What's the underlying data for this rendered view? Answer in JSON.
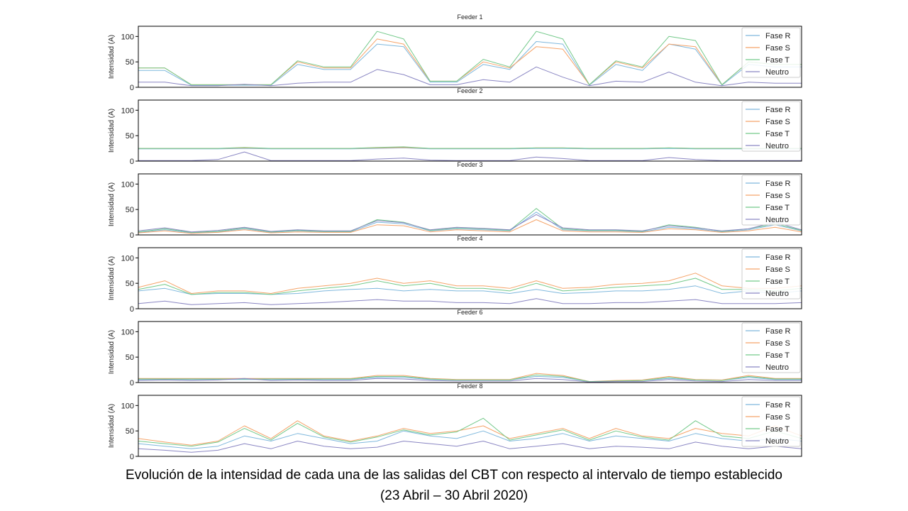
{
  "caption": {
    "line1": "Evolución de la intensidad de cada una de las salidas del CBT con respecto al intervalo de tiempo establecido",
    "line2": "(23 Abril – 30 Abril 2020)"
  },
  "colors": {
    "Fase R": "#7fb8dd",
    "Fase S": "#f5a46a",
    "Fase T": "#73c98a",
    "Neutro": "#8a86c3"
  },
  "chart_data": [
    {
      "type": "line",
      "title": "Feeder 1",
      "ylabel": "Intensidad (A)",
      "ylim": [
        0,
        120
      ],
      "yticks": [
        0,
        50,
        100
      ],
      "x": [
        0,
        4,
        8,
        12,
        16,
        20,
        24,
        28,
        32,
        36,
        40,
        44,
        48,
        52,
        56,
        60,
        64,
        68,
        72,
        76,
        80,
        84,
        88,
        92,
        96,
        100
      ],
      "legend": "upper right",
      "series": [
        {
          "name": "Fase R",
          "values": [
            33,
            33,
            4,
            4,
            4,
            4,
            45,
            35,
            35,
            85,
            80,
            10,
            10,
            45,
            35,
            90,
            85,
            4,
            45,
            33,
            85,
            75,
            4,
            45,
            40,
            40
          ]
        },
        {
          "name": "Fase S",
          "values": [
            38,
            38,
            5,
            5,
            5,
            5,
            50,
            38,
            38,
            95,
            85,
            12,
            12,
            50,
            38,
            80,
            75,
            5,
            50,
            38,
            85,
            80,
            5,
            50,
            45,
            45
          ]
        },
        {
          "name": "Fase T",
          "values": [
            38,
            38,
            5,
            5,
            5,
            5,
            52,
            40,
            40,
            110,
            95,
            12,
            12,
            55,
            40,
            110,
            95,
            5,
            52,
            40,
            100,
            92,
            5,
            50,
            45,
            45
          ]
        },
        {
          "name": "Neutro",
          "values": [
            10,
            10,
            3,
            3,
            6,
            3,
            8,
            10,
            10,
            35,
            25,
            5,
            5,
            15,
            10,
            40,
            20,
            3,
            12,
            10,
            30,
            10,
            3,
            10,
            8,
            8
          ]
        }
      ]
    },
    {
      "type": "line",
      "title": "Feeder 2",
      "ylabel": "Intensidad (A)",
      "ylim": [
        0,
        120
      ],
      "yticks": [
        0,
        50,
        100
      ],
      "x": [
        0,
        4,
        8,
        12,
        16,
        20,
        24,
        28,
        32,
        36,
        40,
        44,
        48,
        52,
        56,
        60,
        64,
        68,
        72,
        76,
        80,
        84,
        88,
        92,
        96,
        100
      ],
      "legend": "upper right",
      "series": [
        {
          "name": "Fase R",
          "values": [
            24,
            24,
            24,
            24,
            25,
            24,
            24,
            24,
            24,
            25,
            26,
            24,
            24,
            24,
            24,
            25,
            25,
            24,
            24,
            24,
            25,
            24,
            24,
            24,
            24,
            24
          ]
        },
        {
          "name": "Fase S",
          "values": [
            25,
            25,
            25,
            25,
            26,
            25,
            25,
            25,
            25,
            26,
            27,
            25,
            25,
            25,
            25,
            26,
            26,
            25,
            25,
            25,
            26,
            25,
            25,
            25,
            25,
            25
          ]
        },
        {
          "name": "Fase T",
          "values": [
            25,
            25,
            25,
            25,
            27,
            25,
            25,
            25,
            25,
            27,
            28,
            25,
            25,
            25,
            25,
            26,
            26,
            25,
            25,
            25,
            26,
            25,
            25,
            25,
            25,
            25
          ]
        },
        {
          "name": "Neutro",
          "values": [
            1,
            1,
            1,
            3,
            18,
            1,
            1,
            1,
            1,
            4,
            6,
            2,
            1,
            1,
            1,
            8,
            5,
            1,
            1,
            1,
            7,
            3,
            1,
            1,
            1,
            1
          ]
        }
      ]
    },
    {
      "type": "line",
      "title": "Feeder 3",
      "ylabel": "Intensidad (A)",
      "ylim": [
        0,
        120
      ],
      "yticks": [
        0,
        50,
        100
      ],
      "x": [
        0,
        4,
        8,
        12,
        16,
        20,
        24,
        28,
        32,
        36,
        40,
        44,
        48,
        52,
        56,
        60,
        64,
        68,
        72,
        76,
        80,
        84,
        88,
        92,
        96,
        100
      ],
      "legend": "upper right",
      "series": [
        {
          "name": "Fase R",
          "values": [
            5,
            10,
            4,
            6,
            12,
            5,
            8,
            6,
            6,
            25,
            22,
            8,
            12,
            10,
            8,
            45,
            10,
            8,
            8,
            6,
            15,
            12,
            6,
            10,
            20,
            8
          ]
        },
        {
          "name": "Fase S",
          "values": [
            4,
            8,
            3,
            5,
            10,
            4,
            6,
            5,
            5,
            20,
            18,
            6,
            10,
            8,
            6,
            30,
            8,
            6,
            6,
            5,
            12,
            10,
            5,
            8,
            15,
            6
          ]
        },
        {
          "name": "Fase T",
          "values": [
            6,
            12,
            5,
            7,
            14,
            6,
            9,
            7,
            7,
            30,
            25,
            9,
            14,
            12,
            9,
            52,
            12,
            9,
            9,
            7,
            20,
            15,
            7,
            12,
            22,
            9
          ]
        },
        {
          "name": "Neutro",
          "values": [
            8,
            14,
            6,
            9,
            15,
            7,
            10,
            8,
            8,
            28,
            24,
            10,
            15,
            13,
            10,
            40,
            14,
            10,
            10,
            8,
            18,
            14,
            8,
            12,
            25,
            10
          ]
        }
      ]
    },
    {
      "type": "line",
      "title": "Feeder 4",
      "ylabel": "Intensidad (A)",
      "ylim": [
        0,
        120
      ],
      "yticks": [
        0,
        50,
        100
      ],
      "x": [
        0,
        4,
        8,
        12,
        16,
        20,
        24,
        28,
        32,
        36,
        40,
        44,
        48,
        52,
        56,
        60,
        64,
        68,
        72,
        76,
        80,
        84,
        88,
        92,
        96,
        100
      ],
      "legend": "upper right",
      "series": [
        {
          "name": "Fase R",
          "values": [
            35,
            40,
            28,
            30,
            30,
            28,
            30,
            35,
            38,
            40,
            35,
            38,
            35,
            35,
            30,
            38,
            30,
            32,
            35,
            35,
            38,
            45,
            30,
            35,
            30,
            35
          ]
        },
        {
          "name": "Fase S",
          "values": [
            42,
            55,
            30,
            35,
            35,
            30,
            40,
            45,
            50,
            60,
            50,
            55,
            45,
            45,
            40,
            55,
            40,
            42,
            48,
            50,
            55,
            70,
            45,
            40,
            40,
            45
          ]
        },
        {
          "name": "Fase T",
          "values": [
            38,
            48,
            28,
            32,
            32,
            28,
            35,
            40,
            45,
            55,
            45,
            50,
            40,
            40,
            35,
            50,
            35,
            38,
            42,
            45,
            48,
            60,
            38,
            38,
            35,
            40
          ]
        },
        {
          "name": "Neutro",
          "values": [
            10,
            15,
            8,
            10,
            12,
            8,
            10,
            12,
            15,
            18,
            15,
            15,
            12,
            12,
            10,
            20,
            10,
            10,
            12,
            12,
            15,
            18,
            10,
            10,
            10,
            12
          ]
        }
      ]
    },
    {
      "type": "line",
      "title": "Feeder 6",
      "ylabel": "Intensidad (A)",
      "ylim": [
        0,
        120
      ],
      "yticks": [
        0,
        50,
        100
      ],
      "x": [
        0,
        4,
        8,
        12,
        16,
        20,
        24,
        28,
        32,
        36,
        40,
        44,
        48,
        52,
        56,
        60,
        64,
        68,
        72,
        76,
        80,
        84,
        88,
        92,
        96,
        100
      ],
      "legend": "upper right",
      "series": [
        {
          "name": "Fase R",
          "values": [
            6,
            6,
            6,
            6,
            6,
            6,
            6,
            6,
            6,
            10,
            10,
            6,
            5,
            5,
            5,
            12,
            10,
            2,
            3,
            4,
            8,
            5,
            4,
            10,
            6,
            6
          ]
        },
        {
          "name": "Fase S",
          "values": [
            8,
            8,
            8,
            8,
            8,
            8,
            8,
            8,
            8,
            14,
            14,
            8,
            6,
            6,
            6,
            18,
            14,
            2,
            4,
            5,
            12,
            6,
            5,
            14,
            8,
            8
          ]
        },
        {
          "name": "Fase T",
          "values": [
            7,
            7,
            7,
            7,
            7,
            7,
            7,
            7,
            7,
            12,
            12,
            7,
            5,
            5,
            5,
            15,
            12,
            2,
            3,
            4,
            10,
            5,
            4,
            12,
            7,
            7
          ]
        },
        {
          "name": "Neutro",
          "values": [
            4,
            5,
            4,
            5,
            8,
            4,
            5,
            4,
            4,
            8,
            7,
            4,
            3,
            3,
            3,
            8,
            6,
            1,
            2,
            2,
            6,
            3,
            2,
            6,
            4,
            4
          ]
        }
      ]
    },
    {
      "type": "line",
      "title": "Feeder 8",
      "ylabel": "Intensidad (A)",
      "ylim": [
        0,
        120
      ],
      "yticks": [
        0,
        50,
        100
      ],
      "x": [
        0,
        4,
        8,
        12,
        16,
        20,
        24,
        28,
        32,
        36,
        40,
        44,
        48,
        52,
        56,
        60,
        64,
        68,
        72,
        76,
        80,
        84,
        88,
        92,
        96,
        100
      ],
      "legend": "upper right",
      "series": [
        {
          "name": "Fase R",
          "values": [
            25,
            20,
            15,
            20,
            40,
            30,
            45,
            35,
            25,
            30,
            50,
            40,
            35,
            50,
            30,
            35,
            45,
            30,
            40,
            35,
            30,
            45,
            35,
            30,
            35,
            30
          ]
        },
        {
          "name": "Fase S",
          "values": [
            35,
            28,
            22,
            30,
            60,
            35,
            70,
            40,
            30,
            40,
            55,
            45,
            50,
            60,
            35,
            45,
            55,
            35,
            55,
            40,
            35,
            55,
            45,
            40,
            60,
            40
          ]
        },
        {
          "name": "Fase T",
          "values": [
            30,
            25,
            20,
            28,
            55,
            32,
            65,
            38,
            28,
            38,
            52,
            42,
            48,
            75,
            32,
            42,
            52,
            32,
            50,
            38,
            32,
            70,
            40,
            35,
            50,
            35
          ]
        },
        {
          "name": "Neutro",
          "values": [
            15,
            12,
            8,
            12,
            25,
            15,
            30,
            20,
            15,
            18,
            30,
            25,
            20,
            30,
            15,
            20,
            25,
            15,
            20,
            18,
            15,
            28,
            20,
            15,
            20,
            15
          ]
        }
      ]
    }
  ]
}
